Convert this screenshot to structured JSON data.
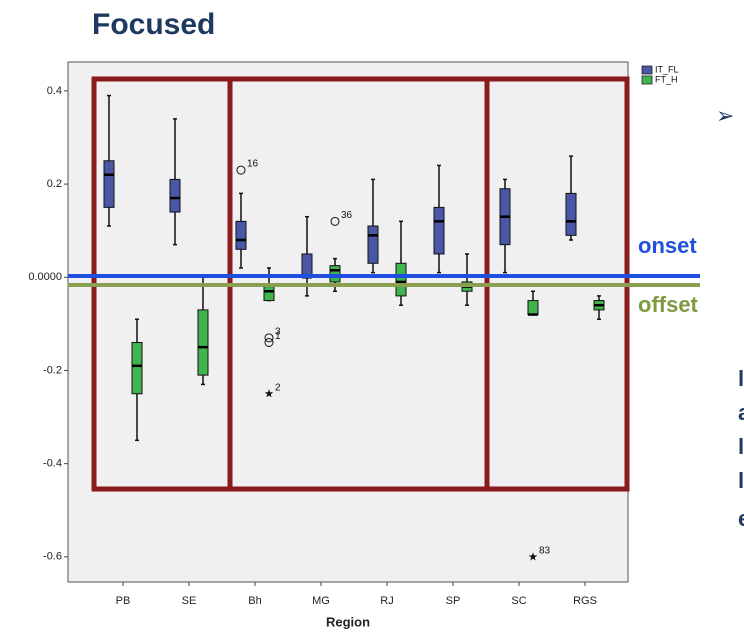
{
  "slide": {
    "title": "Focused",
    "bullet": "➢",
    "onset_label": "onset",
    "offset_label": "offset",
    "cut_off_text": [
      "l",
      "a",
      "l",
      "l",
      "e"
    ]
  },
  "chart_data": {
    "type": "boxplot",
    "x_label": "Region",
    "categories": [
      "PB",
      "SE",
      "Bh",
      "MG",
      "RJ",
      "SP",
      "SC",
      "RGS"
    ],
    "ylim": [
      -0.654,
      0.462
    ],
    "yticks": [
      0.4,
      0.2,
      {
        "value": 0,
        "label": "0.0000"
      },
      -0.2,
      -0.4,
      -0.6
    ],
    "legend": "top-right",
    "series": [
      {
        "name": "IT_FL",
        "color": "#4a56a6",
        "values": [
          [
            0.11,
            0.15,
            0.22,
            0.25,
            0.39
          ],
          [
            0.07,
            0.14,
            0.17,
            0.21,
            0.34
          ],
          [
            0.02,
            0.06,
            0.08,
            0.12,
            0.18
          ],
          [
            -0.04,
            0.0,
            0.0,
            0.05,
            0.13
          ],
          [
            0.01,
            0.03,
            0.09,
            0.11,
            0.21
          ],
          [
            0.01,
            0.05,
            0.12,
            0.15,
            0.24
          ],
          [
            0.01,
            0.07,
            0.13,
            0.19,
            0.21
          ],
          [
            0.08,
            0.09,
            0.12,
            0.18,
            0.26
          ]
        ],
        "outliers": [
          {
            "category": "Bh",
            "value": 0.23,
            "label": "16",
            "marker": "circle"
          }
        ]
      },
      {
        "name": "FT_H",
        "color": "#3fb54f",
        "values": [
          [
            -0.35,
            -0.25,
            -0.19,
            -0.14,
            -0.09
          ],
          [
            -0.23,
            -0.21,
            -0.15,
            -0.07,
            0.0
          ],
          [
            -0.05,
            -0.05,
            -0.03,
            -0.02,
            0.02
          ],
          [
            -0.03,
            -0.01,
            0.015,
            0.025,
            0.04
          ],
          [
            -0.06,
            -0.04,
            -0.01,
            0.03,
            0.12
          ],
          [
            -0.06,
            -0.03,
            -0.02,
            -0.01,
            0.05
          ],
          [
            -0.08,
            -0.08,
            -0.08,
            -0.05,
            -0.03
          ],
          [
            -0.09,
            -0.07,
            -0.06,
            -0.05,
            -0.04
          ]
        ],
        "outliers": [
          {
            "category": "Bh",
            "value": -0.13,
            "label": "3",
            "marker": "circle"
          },
          {
            "category": "Bh",
            "value": -0.14,
            "label": "1",
            "marker": "circle"
          },
          {
            "category": "Bh",
            "value": -0.25,
            "label": "2",
            "marker": "star"
          },
          {
            "category": "MG",
            "value": 0.12,
            "label": "36",
            "marker": "circle"
          },
          {
            "category": "SC",
            "value": -0.6,
            "label": "83",
            "marker": "star"
          }
        ]
      }
    ]
  }
}
